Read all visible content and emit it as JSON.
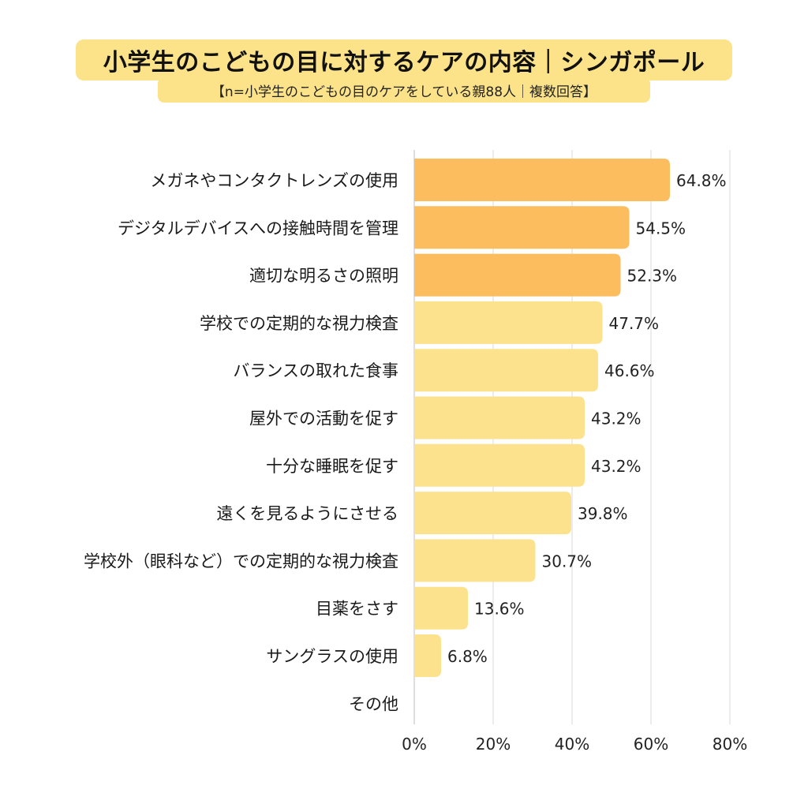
{
  "title": "小学生のこどもの目に対するケアの内容｜シンガポール",
  "subtitle": "【n=小学生のこどもの目のケアをしている親88人｜複数回答】",
  "colors": {
    "highlight": "#fbbd5e",
    "normal": "#fde28e",
    "title_bg": "#fce38a",
    "grid": "#d9d9d9"
  },
  "chart_data": {
    "type": "bar",
    "orientation": "horizontal",
    "categories": [
      "メガネやコンタクトレンズの使用",
      "デジタルデバイスへの接触時間を管理",
      "適切な明るさの照明",
      "学校での定期的な視力検査",
      "バランスの取れた食事",
      "屋外での活動を促す",
      "十分な睡眠を促す",
      "遠くを見るようにさせる",
      "学校外（眼科など）での定期的な視力検査",
      "目薬をさす",
      "サングラスの使用",
      "その他"
    ],
    "values": [
      64.8,
      54.5,
      52.3,
      47.7,
      46.6,
      43.2,
      43.2,
      39.8,
      30.7,
      13.6,
      6.8,
      0
    ],
    "value_labels": [
      "64.8%",
      "54.5%",
      "52.3%",
      "47.7%",
      "46.6%",
      "43.2%",
      "43.2%",
      "39.8%",
      "30.7%",
      "13.6%",
      "6.8%",
      ""
    ],
    "highlight_count": 3,
    "xlim": [
      0,
      80
    ],
    "xticks": [
      "0%",
      "20%",
      "40%",
      "60%",
      "80%"
    ],
    "grid": true
  }
}
